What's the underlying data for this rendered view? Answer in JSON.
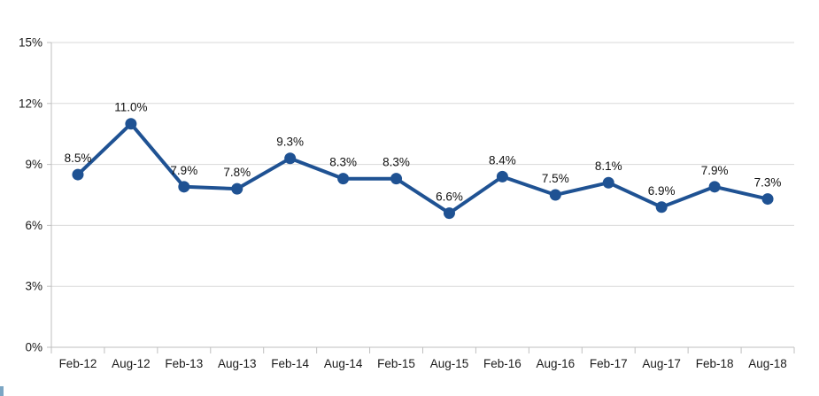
{
  "chart_data": {
    "type": "line",
    "title": "",
    "xlabel": "",
    "ylabel": "",
    "categories": [
      "Feb-12",
      "Aug-12",
      "Feb-13",
      "Aug-13",
      "Feb-14",
      "Aug-14",
      "Feb-15",
      "Aug-15",
      "Feb-16",
      "Aug-16",
      "Feb-17",
      "Aug-17",
      "Feb-18",
      "Aug-18"
    ],
    "values": [
      8.5,
      11.0,
      7.9,
      7.8,
      9.3,
      8.3,
      8.3,
      6.6,
      8.4,
      7.5,
      8.1,
      6.9,
      7.9,
      7.3
    ],
    "data_labels": [
      "8.5%",
      "11.0%",
      "7.9%",
      "7.8%",
      "9.3%",
      "8.3%",
      "8.3%",
      "6.6%",
      "8.4%",
      "7.5%",
      "8.1%",
      "6.9%",
      "7.9%",
      "7.3%"
    ],
    "ylim": [
      0,
      15
    ],
    "ytick_interval": 3,
    "ytick_labels": [
      "0%",
      "3%",
      "6%",
      "9%",
      "12%",
      "15%"
    ],
    "grid": "horizontal-only",
    "legend": "none",
    "marker": "circle",
    "colors": {
      "line": "#1F5293",
      "marker": "#1F5293",
      "gridline": "#D9D9D9",
      "axis": "#BFBFBF",
      "tick": "#BFBFBF",
      "axis_text": "#1A1A1A",
      "label_text": "#111111",
      "background": "#FFFFFF",
      "corner_accent": "#7CA6C4"
    }
  }
}
